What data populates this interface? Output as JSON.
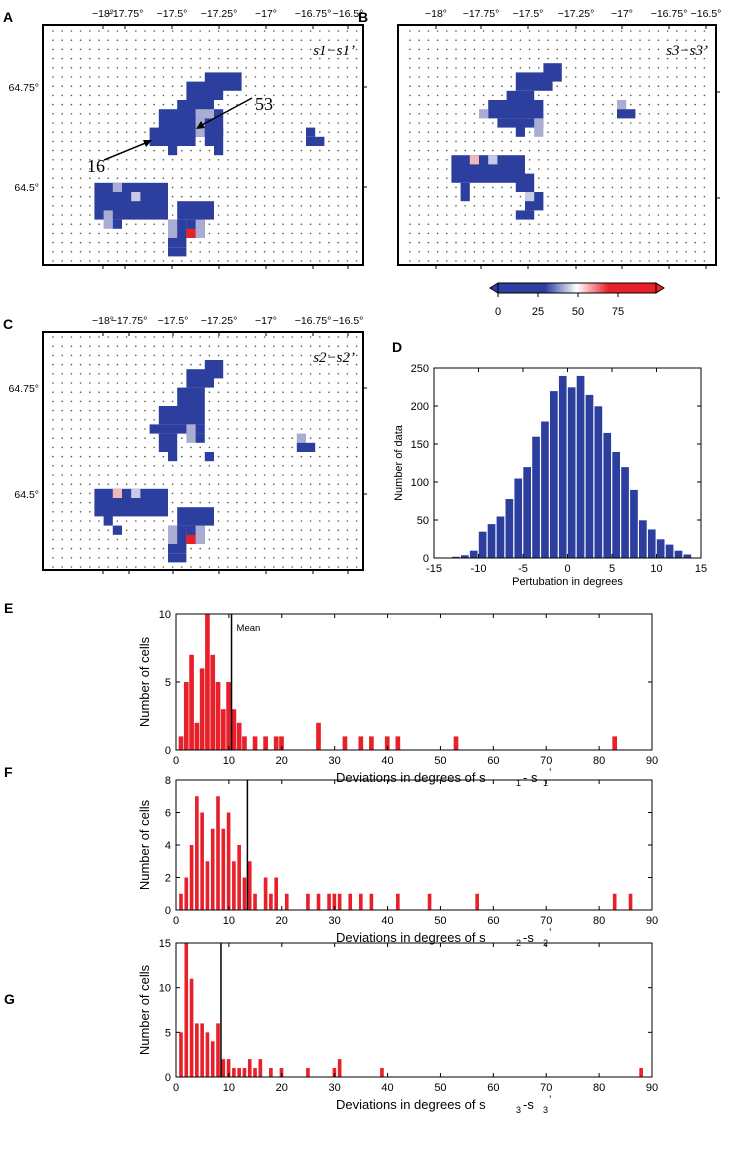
{
  "figure": {
    "description_free": ""
  },
  "maps": {
    "lon_ticks": [
      "−18°",
      "−17.75°",
      "−17.5°",
      "−17.25°",
      "−17°",
      "−16.75°",
      "−16.5°"
    ],
    "lat_ticks": [
      "64.75°",
      "64.5°"
    ],
    "panels": [
      {
        "letter": "A",
        "label": "s1−s1’",
        "annotations": [
          "16",
          "53"
        ]
      },
      {
        "letter": "B",
        "label": "s3−s3’",
        "annotations": []
      },
      {
        "letter": "C",
        "label": "s2−s2’",
        "annotations": []
      }
    ],
    "colorbar": {
      "ticks": [
        "0",
        "25",
        "50",
        "75"
      ],
      "colors": {
        "low": "#2d3f9e",
        "mid": "#ffffff",
        "high": "#e8202a"
      }
    }
  },
  "chart_data": [
    {
      "panel": "D",
      "type": "bar",
      "title": "",
      "xlabel": "Pertubation in degrees",
      "ylabel": "Number of data",
      "xlim": [
        -15,
        15
      ],
      "ylim": [
        0,
        250
      ],
      "xticks": [
        "-15",
        "-10",
        "-5",
        "0",
        "5",
        "10",
        "15"
      ],
      "yticks": [
        "0",
        "50",
        "100",
        "150",
        "200",
        "250"
      ],
      "bin_width": 1,
      "bin_centers": [
        -12.5,
        -11.5,
        -10.5,
        -9.5,
        -8.5,
        -7.5,
        -6.5,
        -5.5,
        -4.5,
        -3.5,
        -2.5,
        -1.5,
        -0.5,
        0.5,
        1.5,
        2.5,
        3.5,
        4.5,
        5.5,
        6.5,
        7.5,
        8.5,
        9.5,
        10.5,
        11.5,
        12.5,
        13.5
      ],
      "values": [
        2,
        4,
        10,
        35,
        45,
        55,
        78,
        105,
        120,
        160,
        180,
        220,
        240,
        225,
        240,
        215,
        200,
        165,
        140,
        120,
        90,
        50,
        38,
        25,
        18,
        10,
        5
      ],
      "color": "#2d3f9e"
    },
    {
      "panel": "E",
      "type": "bar",
      "xlabel": "Deviations in degrees of s",
      "xlabel_parts": [
        "1",
        "- s",
        "1",
        "’"
      ],
      "ylabel": "Number of cells",
      "xlim": [
        0,
        90
      ],
      "ylim": [
        0,
        10
      ],
      "xticks": [
        "0",
        "10",
        "20",
        "30",
        "40",
        "50",
        "60",
        "70",
        "80",
        "90"
      ],
      "yticks": [
        "0",
        "5",
        "10"
      ],
      "mean": 10.5,
      "mean_label": "Mean",
      "bin_width": 1,
      "bins": [
        1,
        2,
        3,
        4,
        5,
        6,
        7,
        8,
        9,
        10,
        11,
        12,
        13,
        15,
        17,
        19,
        20,
        27,
        32,
        35,
        37,
        40,
        42,
        53,
        83
      ],
      "values": [
        1,
        5,
        7,
        2,
        6,
        10,
        7,
        5,
        3,
        5,
        3,
        2,
        1,
        1,
        1,
        1,
        1,
        2,
        1,
        1,
        1,
        1,
        1,
        1,
        1
      ],
      "color": "#e8202a"
    },
    {
      "panel": "F",
      "type": "bar",
      "xlabel": "Deviations in degrees of s",
      "xlabel_parts": [
        "2",
        "-s",
        "2",
        "’"
      ],
      "ylabel": "Number of cells",
      "xlim": [
        0,
        90
      ],
      "ylim": [
        0,
        8
      ],
      "xticks": [
        "0",
        "10",
        "20",
        "30",
        "40",
        "50",
        "60",
        "70",
        "80",
        "90"
      ],
      "yticks": [
        "0",
        "2",
        "4",
        "6",
        "8"
      ],
      "mean": 13.5,
      "bin_width": 0.8,
      "bins": [
        1,
        2,
        3,
        4,
        5,
        6,
        7,
        8,
        9,
        10,
        11,
        12,
        13,
        14,
        15,
        17,
        18,
        19,
        21,
        25,
        27,
        29,
        30,
        31,
        33,
        35,
        37,
        42,
        48,
        57,
        83,
        86
      ],
      "values": [
        1,
        2,
        4,
        7,
        6,
        3,
        5,
        7,
        5,
        6,
        3,
        4,
        2,
        3,
        1,
        2,
        1,
        2,
        1,
        1,
        1,
        1,
        1,
        1,
        1,
        1,
        1,
        1,
        1,
        1,
        1,
        1
      ],
      "color": "#e8202a"
    },
    {
      "panel": "G",
      "type": "bar",
      "xlabel": "Deviations in degrees of s",
      "xlabel_parts": [
        "3",
        "-s",
        "3",
        "’"
      ],
      "ylabel": "Number of cells",
      "xlim": [
        0,
        90
      ],
      "ylim": [
        0,
        15
      ],
      "xticks": [
        "0",
        "10",
        "20",
        "30",
        "40",
        "50",
        "60",
        "70",
        "80",
        "90"
      ],
      "yticks": [
        "0",
        "5",
        "10",
        "15"
      ],
      "mean": 8.5,
      "bin_width": 0.8,
      "bins": [
        1,
        2,
        3,
        4,
        5,
        6,
        7,
        8,
        9,
        10,
        11,
        12,
        13,
        14,
        15,
        16,
        18,
        20,
        25,
        30,
        31,
        39,
        88
      ],
      "values": [
        5,
        15,
        11,
        6,
        6,
        5,
        4,
        6,
        2,
        2,
        1,
        1,
        1,
        2,
        1,
        2,
        1,
        1,
        1,
        1,
        2,
        1,
        1
      ],
      "color": "#e8202a"
    }
  ]
}
